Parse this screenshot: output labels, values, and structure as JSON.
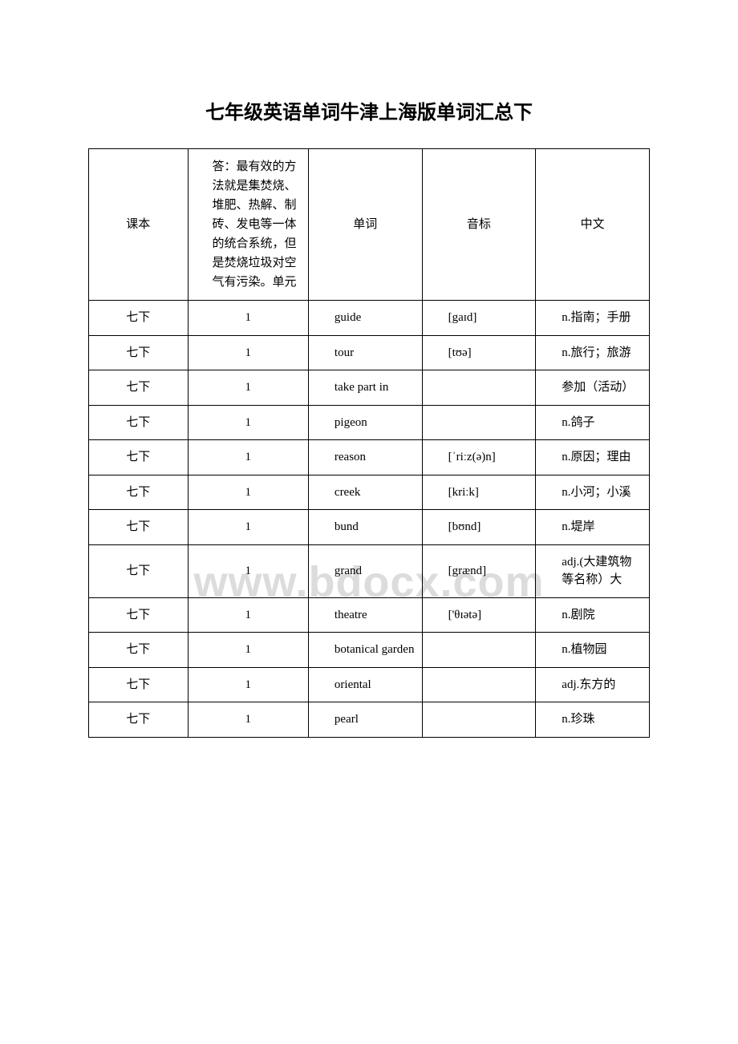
{
  "title": "七年级英语单词牛津上海版单词汇总下",
  "watermark": "www.bdocx.com",
  "headers": {
    "col1": "课本",
    "col2": "答：最有效的方法就是集焚烧、堆肥、热解、制砖、发电等一体的统合系统，但是焚烧垃圾对空气有污染。单元",
    "col3": "单词",
    "col4": "音标",
    "col5": "中文"
  },
  "rows": [
    {
      "c1": "七下",
      "c2": "1",
      "c3": "guide",
      "c4": "[gaɪd]",
      "c5": "n.指南；手册"
    },
    {
      "c1": "七下",
      "c2": "1",
      "c3": "tour",
      "c4": "[tʊə]",
      "c5": "n.旅行；旅游"
    },
    {
      "c1": "七下",
      "c2": "1",
      "c3": "take part in",
      "c4": "",
      "c5": "参加（活动）"
    },
    {
      "c1": "七下",
      "c2": "1",
      "c3": "pigeon",
      "c4": "",
      "c5": "n.鸽子"
    },
    {
      "c1": "七下",
      "c2": "1",
      "c3": "reason",
      "c4": "[ˈriːz(ə)n]",
      "c5": "n.原因；理由"
    },
    {
      "c1": "七下",
      "c2": "1",
      "c3": "creek",
      "c4": "[kriːk]",
      "c5": "n.小河；小溪"
    },
    {
      "c1": "七下",
      "c2": "1",
      "c3": "bund",
      "c4": "[bʊnd]",
      "c5": "n.堤岸"
    },
    {
      "c1": "七下",
      "c2": "1",
      "c3": "grand",
      "c4": "[grænd]",
      "c5": "adj.(大建筑物等名称）大"
    },
    {
      "c1": "七下",
      "c2": "1",
      "c3": "theatre",
      "c4": "['θɪətə]",
      "c5": "n.剧院"
    },
    {
      "c1": "七下",
      "c2": "1",
      "c3": "botanical garden",
      "c4": "",
      "c5": "n.植物园"
    },
    {
      "c1": "七下",
      "c2": "1",
      "c3": "oriental",
      "c4": "",
      "c5": "adj.东方的"
    },
    {
      "c1": "七下",
      "c2": "1",
      "c3": "pearl",
      "c4": "",
      "c5": "n.珍珠"
    }
  ]
}
